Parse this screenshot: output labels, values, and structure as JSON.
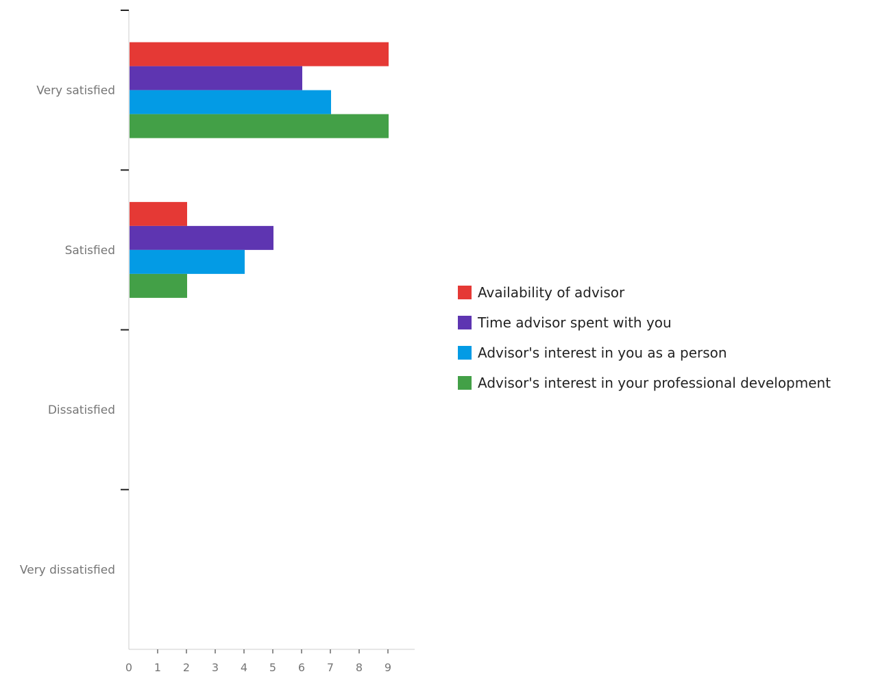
{
  "chart_data": {
    "type": "bar",
    "orientation": "horizontal",
    "categories": [
      "Very satisfied",
      "Satisfied",
      "Dissatisfied",
      "Very dissatisfied"
    ],
    "series": [
      {
        "name": "Availability of advisor",
        "color": "#e53935",
        "values": [
          9,
          2,
          0,
          0
        ]
      },
      {
        "name": "Time advisor spent with you",
        "color": "#5e35b1",
        "values": [
          6,
          5,
          0,
          0
        ]
      },
      {
        "name": "Advisor's interest in you as a person",
        "color": "#039be5",
        "values": [
          7,
          4,
          0,
          0
        ]
      },
      {
        "name": "Advisor's interest in your professional development",
        "color": "#43a047",
        "values": [
          9,
          2,
          0,
          0
        ]
      }
    ],
    "xlim": [
      0,
      10
    ],
    "xticks": [
      "0",
      "1",
      "2",
      "3",
      "4",
      "5",
      "6",
      "7",
      "8",
      "9"
    ],
    "grid": false,
    "legend_position": "right"
  }
}
